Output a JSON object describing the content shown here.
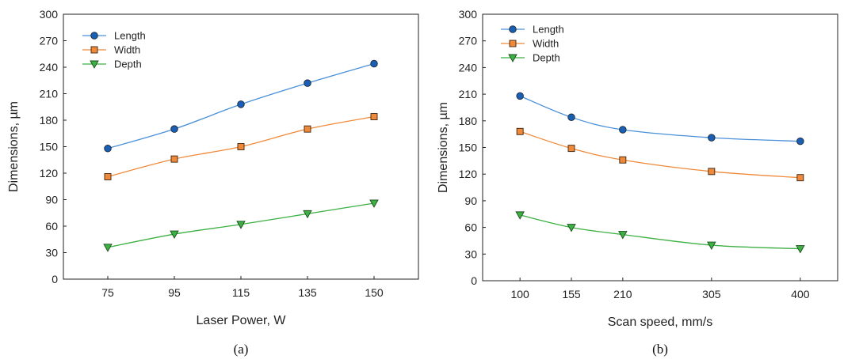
{
  "chart_data": [
    {
      "type": "line",
      "caption": "(a)",
      "xlabel": "Laser Power, W",
      "ylabel": "Dimensions, µm",
      "categories": [
        "75",
        "95",
        "115",
        "135",
        "150"
      ],
      "ylim": [
        0,
        300
      ],
      "yticks": [
        0,
        30,
        60,
        90,
        120,
        150,
        180,
        210,
        240,
        270,
        300
      ],
      "legend_position": "top-left",
      "grid": false,
      "series": [
        {
          "name": "Length",
          "marker": "circle",
          "color": "#4a90d9",
          "fill": "#1a5fb4",
          "values": [
            148,
            170,
            198,
            222,
            244
          ]
        },
        {
          "name": "Width",
          "marker": "square",
          "color": "#f08a3a",
          "fill": "#f08a3a",
          "values": [
            116,
            136,
            150,
            170,
            184
          ]
        },
        {
          "name": "Depth",
          "marker": "triangle-down",
          "color": "#3cb043",
          "fill": "#3cb043",
          "values": [
            36,
            51,
            62,
            74,
            86
          ]
        }
      ]
    },
    {
      "type": "line",
      "caption": "(b)",
      "xlabel": "Scan speed, mm/s",
      "ylabel": "Dimensions, µm",
      "x": [
        100,
        155,
        210,
        305,
        400
      ],
      "xticks": [
        100,
        155,
        210,
        305,
        400
      ],
      "xlim": [
        60,
        440
      ],
      "ylim": [
        0,
        300
      ],
      "yticks": [
        0,
        30,
        60,
        90,
        120,
        150,
        180,
        210,
        240,
        270,
        300
      ],
      "legend_position": "top-left",
      "grid": false,
      "series": [
        {
          "name": "Length",
          "marker": "circle",
          "color": "#4a90d9",
          "fill": "#1a5fb4",
          "values": [
            208,
            184,
            170,
            161,
            157
          ]
        },
        {
          "name": "Width",
          "marker": "square",
          "color": "#f08a3a",
          "fill": "#f08a3a",
          "values": [
            168,
            149,
            136,
            123,
            116
          ]
        },
        {
          "name": "Depth",
          "marker": "triangle-down",
          "color": "#3cb043",
          "fill": "#3cb043",
          "values": [
            74,
            60,
            52,
            40,
            36
          ]
        }
      ]
    }
  ]
}
